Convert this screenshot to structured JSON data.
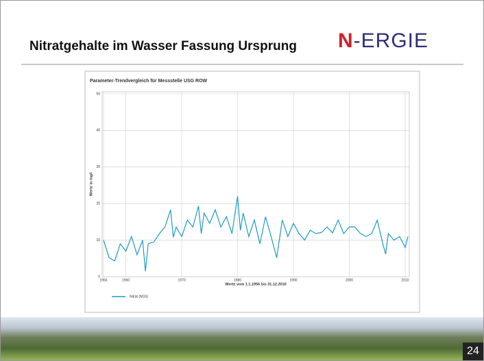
{
  "slide_title": "Nitratgehalte im Wasser Fassung Ursprung",
  "logo": [
    "N",
    "-ERGIE"
  ],
  "page_number": "24",
  "chart_data": {
    "type": "line",
    "title": "Parameter-Trendvergleich für Messstelle USG ROW",
    "x_label": "Werte vom 1.1.1956 bis 31.12.2010",
    "y_label": "Werte in mg/l",
    "x": [
      1956,
      1957,
      1958,
      1959,
      1960,
      1961,
      1962,
      1963,
      1963.5,
      1964,
      1965,
      1966,
      1967,
      1968,
      1968.5,
      1969,
      1970,
      1971,
      1972,
      1973,
      1973.5,
      1974,
      1975,
      1976,
      1977,
      1978,
      1979,
      1980,
      1980.5,
      1981,
      1982,
      1983,
      1984,
      1985,
      1986,
      1987,
      1988,
      1989,
      1990,
      1991,
      1992,
      1993,
      1994,
      1995,
      1996,
      1997,
      1998,
      1999,
      2000,
      2001,
      2002,
      2003,
      2004,
      2005,
      2006,
      2006.5,
      2007,
      2008,
      2009,
      2010,
      2010.5
    ],
    "series": [
      {
        "name": "Nitrat (NO3)",
        "color": "#1a9ac8",
        "values": [
          10,
          5.2,
          4.3,
          9,
          7,
          11,
          6,
          10,
          1.5,
          9,
          9.5,
          11.8,
          13.6,
          18.3,
          10.8,
          13.6,
          11,
          15.5,
          13.6,
          19.3,
          11.8,
          17.4,
          14.6,
          18.3,
          13.6,
          16.4,
          11.8,
          22,
          12.7,
          17.4,
          11,
          15.5,
          9,
          16.4,
          11,
          5.2,
          15.5,
          11,
          14.6,
          11.8,
          10,
          12.7,
          11.8,
          12.1,
          13.6,
          12,
          15.5,
          11.8,
          13.6,
          13.6,
          11.8,
          11,
          11.8,
          15.5,
          9,
          6.2,
          11.8,
          10,
          11,
          8,
          11
        ]
      }
    ],
    "xlim": [
      1956,
      2010
    ],
    "xticks": [
      1956,
      1960,
      1970,
      1980,
      1990,
      2000,
      2010
    ],
    "ylim": [
      0,
      50
    ],
    "yticks": [
      0,
      10,
      20,
      30,
      40,
      50
    ],
    "grid": true
  }
}
